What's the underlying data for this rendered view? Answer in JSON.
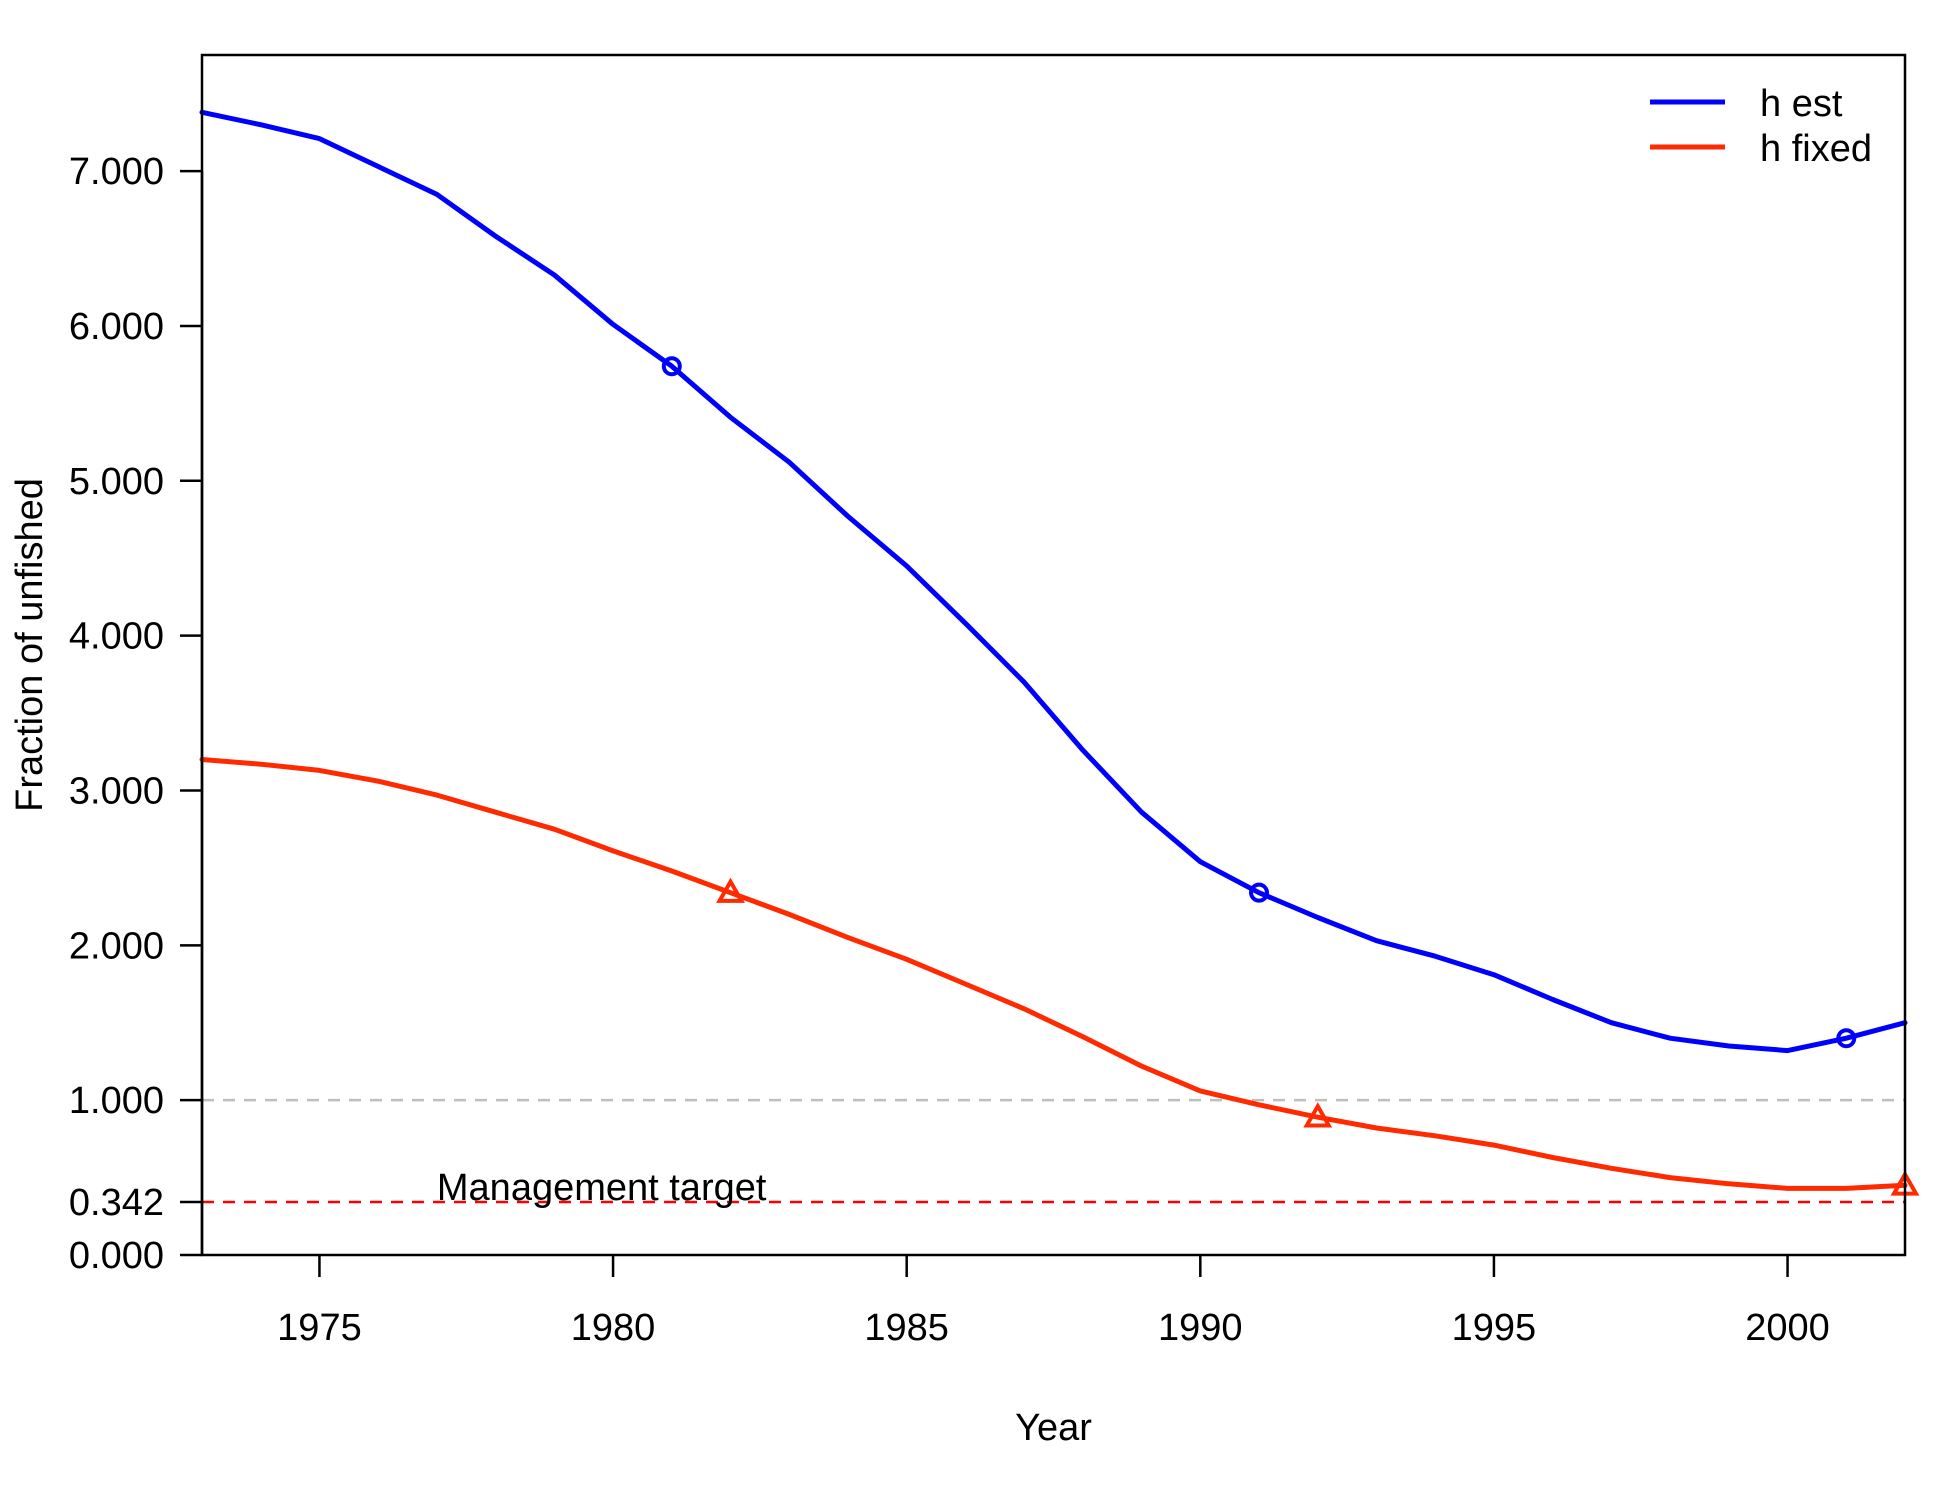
{
  "chart_data": {
    "type": "line",
    "xlabel": "Year",
    "ylabel": "Fraction of unfished",
    "xlim": [
      1973,
      2002
    ],
    "ylim": [
      0,
      7.75
    ],
    "x_ticks": [
      1975,
      1980,
      1985,
      1990,
      1995,
      2000
    ],
    "y_ticks": [
      0.0,
      0.342,
      1.0,
      2.0,
      3.0,
      4.0,
      5.0,
      6.0,
      7.0
    ],
    "y_tick_labels": [
      "0.000",
      "0.342",
      "1.000",
      "2.000",
      "3.000",
      "4.000",
      "5.000",
      "6.000",
      "7.000"
    ],
    "legend_position": "top-right",
    "grid": false,
    "x": [
      1973,
      1974,
      1975,
      1976,
      1977,
      1978,
      1979,
      1980,
      1981,
      1982,
      1983,
      1984,
      1985,
      1986,
      1987,
      1988,
      1989,
      1990,
      1991,
      1992,
      1993,
      1994,
      1995,
      1996,
      1997,
      1998,
      1999,
      2000,
      2001,
      2002
    ],
    "series": [
      {
        "name": "h est",
        "color": "#0000ff",
        "marker": "circle",
        "marker_x": [
          1981,
          1991,
          2001
        ],
        "values": [
          7.38,
          7.3,
          7.21,
          7.03,
          6.85,
          6.58,
          6.33,
          6.01,
          5.74,
          5.41,
          5.12,
          4.77,
          4.45,
          4.08,
          3.7,
          3.26,
          2.86,
          2.54,
          2.34,
          2.18,
          2.03,
          1.93,
          1.81,
          1.65,
          1.5,
          1.4,
          1.35,
          1.32,
          1.4,
          1.5
        ]
      },
      {
        "name": "h fixed",
        "color": "#ff2a00",
        "marker": "triangle",
        "marker_x": [
          1982,
          1992,
          2002
        ],
        "values": [
          3.2,
          3.17,
          3.13,
          3.06,
          2.97,
          2.86,
          2.75,
          2.61,
          2.48,
          2.34,
          2.2,
          2.05,
          1.91,
          1.75,
          1.59,
          1.41,
          1.22,
          1.06,
          0.97,
          0.89,
          0.82,
          0.77,
          0.71,
          0.63,
          0.56,
          0.5,
          0.46,
          0.43,
          0.43,
          0.45
        ]
      }
    ],
    "reference_lines": [
      {
        "y": 1.0,
        "color": "#bebebe",
        "label": ""
      },
      {
        "y": 0.342,
        "color": "#ff0000",
        "label": "Management target",
        "label_x": 1977
      }
    ]
  }
}
